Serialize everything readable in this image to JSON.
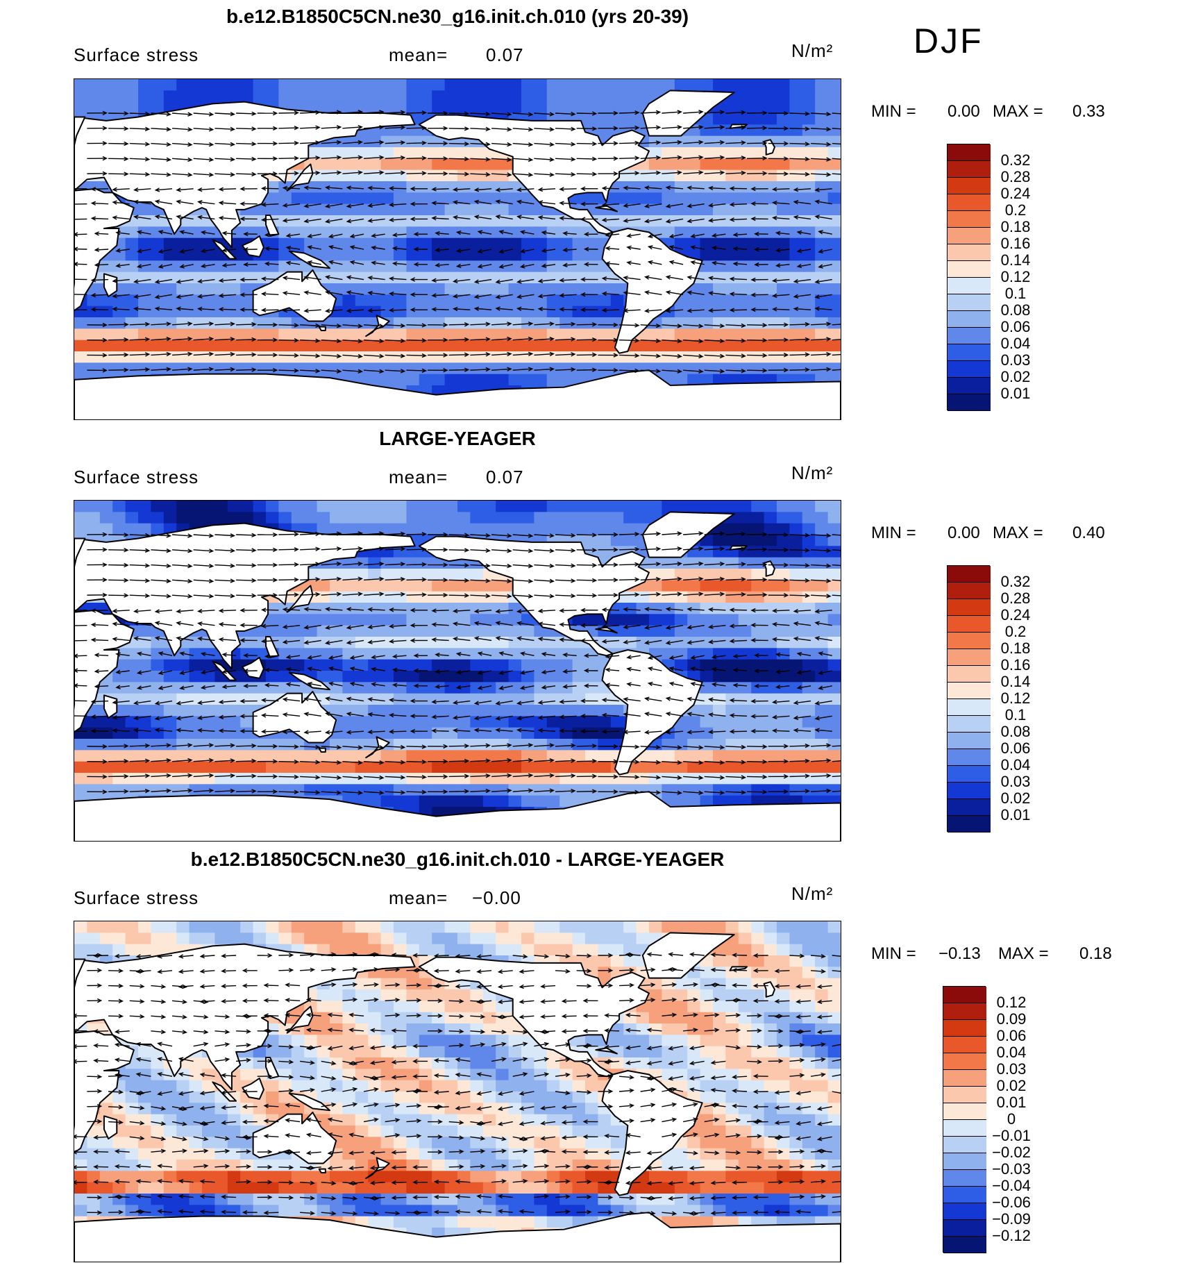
{
  "season": "DJF",
  "panels": [
    {
      "title": "b.e12.B1850C5CN.ne30_g16.init.ch.010 (yrs 20-39)",
      "variable": "Surface stress",
      "mean_label": "mean=",
      "mean_value": "0.07",
      "units": "N/m²",
      "min_label": "MIN =",
      "min_value": "0.00",
      "max_label": "MAX =",
      "max_value": "0.33",
      "colorbar_labels": [
        "0.32",
        "0.28",
        "0.24",
        "0.2",
        "0.18",
        "0.16",
        "0.14",
        "0.12",
        "0.1",
        "0.08",
        "0.06",
        "0.04",
        "0.03",
        "0.02",
        "0.01"
      ],
      "colorbar_colors": [
        "#8b0a0a",
        "#b01e0e",
        "#d43a12",
        "#e9582a",
        "#f2784a",
        "#f7a07c",
        "#fbc8ae",
        "#fde8d8",
        "#d9e8f8",
        "#b7d0f3",
        "#8fb1ee",
        "#5f88ea",
        "#2e5ee6",
        "#1438d4",
        "#0a1f9e",
        "#061474"
      ]
    },
    {
      "title": "LARGE-YEAGER",
      "variable": "Surface stress",
      "mean_label": "mean=",
      "mean_value": "0.07",
      "units": "N/m²",
      "min_label": "MIN =",
      "min_value": "0.00",
      "max_label": "MAX =",
      "max_value": "0.40",
      "colorbar_labels": [
        "0.32",
        "0.28",
        "0.24",
        "0.2",
        "0.18",
        "0.16",
        "0.14",
        "0.12",
        "0.1",
        "0.08",
        "0.06",
        "0.04",
        "0.03",
        "0.02",
        "0.01"
      ],
      "colorbar_colors": [
        "#8b0a0a",
        "#b01e0e",
        "#d43a12",
        "#e9582a",
        "#f2784a",
        "#f7a07c",
        "#fbc8ae",
        "#fde8d8",
        "#d9e8f8",
        "#b7d0f3",
        "#8fb1ee",
        "#5f88ea",
        "#2e5ee6",
        "#1438d4",
        "#0a1f9e",
        "#061474"
      ]
    },
    {
      "title": "b.e12.B1850C5CN.ne30_g16.init.ch.010 - LARGE-YEAGER",
      "variable": "Surface stress",
      "mean_label": "mean=",
      "mean_value": "−0.00",
      "units": "N/m²",
      "min_label": "MIN =",
      "min_value": "−0.13",
      "max_label": "MAX =",
      "max_value": "0.18",
      "colorbar_labels": [
        "0.12",
        "0.09",
        "0.06",
        "0.04",
        "0.03",
        "0.02",
        "0.01",
        "0",
        "−0.01",
        "−0.02",
        "−0.03",
        "−0.04",
        "−0.06",
        "−0.09",
        "−0.12"
      ],
      "colorbar_colors": [
        "#8b0a0a",
        "#b01e0e",
        "#d43a12",
        "#e9582a",
        "#f2784a",
        "#f7a07c",
        "#fbc8ae",
        "#fde8d8",
        "#d9e8f8",
        "#b7d0f3",
        "#8fb1ee",
        "#5f88ea",
        "#2e5ee6",
        "#1438d4",
        "#0a1f9e",
        "#061474"
      ]
    }
  ]
}
